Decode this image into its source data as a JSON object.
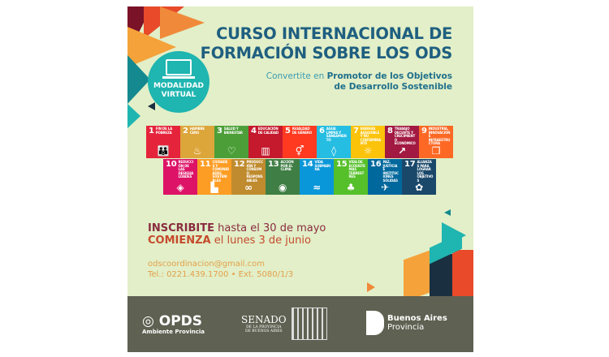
{
  "title_lines": [
    "CURSO INTERNACIONAL DE",
    "FORMACIÓN SOBRE LOS ODS"
  ],
  "subtitle": {
    "prefix": "Convertite en",
    "bold_line1": "Promotor de los Objetivos",
    "bold_line2": "de Desarrollo Sostenible"
  },
  "badge": {
    "line1": "MODALIDAD",
    "line2": "VIRTUAL",
    "icon": "laptop-icon"
  },
  "sdgs": [
    {
      "n": "1",
      "label": "Fin de la pobreza",
      "color": "#e5243b",
      "icon": "👪"
    },
    {
      "n": "2",
      "label": "Hambre cero",
      "color": "#dda63a",
      "icon": "♨"
    },
    {
      "n": "3",
      "label": "Salud y bienestar",
      "color": "#4c9f38",
      "icon": "♡"
    },
    {
      "n": "4",
      "label": "Educación de calidad",
      "color": "#c5192d",
      "icon": "▥"
    },
    {
      "n": "5",
      "label": "Igualdad de género",
      "color": "#ff3a21",
      "icon": "⚥"
    },
    {
      "n": "6",
      "label": "Agua limpia y saneamiento",
      "color": "#26bde2",
      "icon": "◊"
    },
    {
      "n": "7",
      "label": "Energía asequible y no contaminante",
      "color": "#fcc30b",
      "icon": "☼"
    },
    {
      "n": "8",
      "label": "Trabajo decente y crecimiento económico",
      "color": "#a21942",
      "icon": "↗"
    },
    {
      "n": "9",
      "label": "Industria, innovación e infraestructura",
      "color": "#fd6925",
      "icon": "❒"
    },
    {
      "n": "10",
      "label": "Reducción de las desigualdades",
      "color": "#dd1367",
      "icon": "◈"
    },
    {
      "n": "11",
      "label": "Ciudades y comunidades sostenibles",
      "color": "#fd9d24",
      "icon": "▙"
    },
    {
      "n": "12",
      "label": "Producción y consumo responsables",
      "color": "#bf8b2e",
      "icon": "∞"
    },
    {
      "n": "13",
      "label": "Acción por el clima",
      "color": "#3f7e44",
      "icon": "◉"
    },
    {
      "n": "14",
      "label": "Vida submarina",
      "color": "#0a97d9",
      "icon": "≈"
    },
    {
      "n": "15",
      "label": "Vida de ecosistemas terrestres",
      "color": "#56c02b",
      "icon": "♣"
    },
    {
      "n": "16",
      "label": "Paz, justicia e instituciones sólidas",
      "color": "#00689d",
      "icon": "✈"
    },
    {
      "n": "17",
      "label": "Alianzas para lograr los objetivos",
      "color": "#19486a",
      "icon": "✿"
    }
  ],
  "dates": {
    "inscribite": "INSCRIBITE",
    "inscribite_rest": "hasta el 30 de mayo",
    "comienza": "COMIENZA",
    "comienza_rest": "el lunes 3 de junio"
  },
  "contact": {
    "email": "odscoordinacion@gmail.com",
    "phone": "Tel.: 0221.439.1700 • Ext. 5080/1/3"
  },
  "footer": {
    "opds": "OPDS",
    "opds_sub": "Ambiente Provincia",
    "senado": "SENADO",
    "senado_sub1": "DE LA PROVINCIA",
    "senado_sub2": "DE BUENOS AIRES",
    "ba1": "Buenos Aires",
    "ba2": "Provincia"
  }
}
